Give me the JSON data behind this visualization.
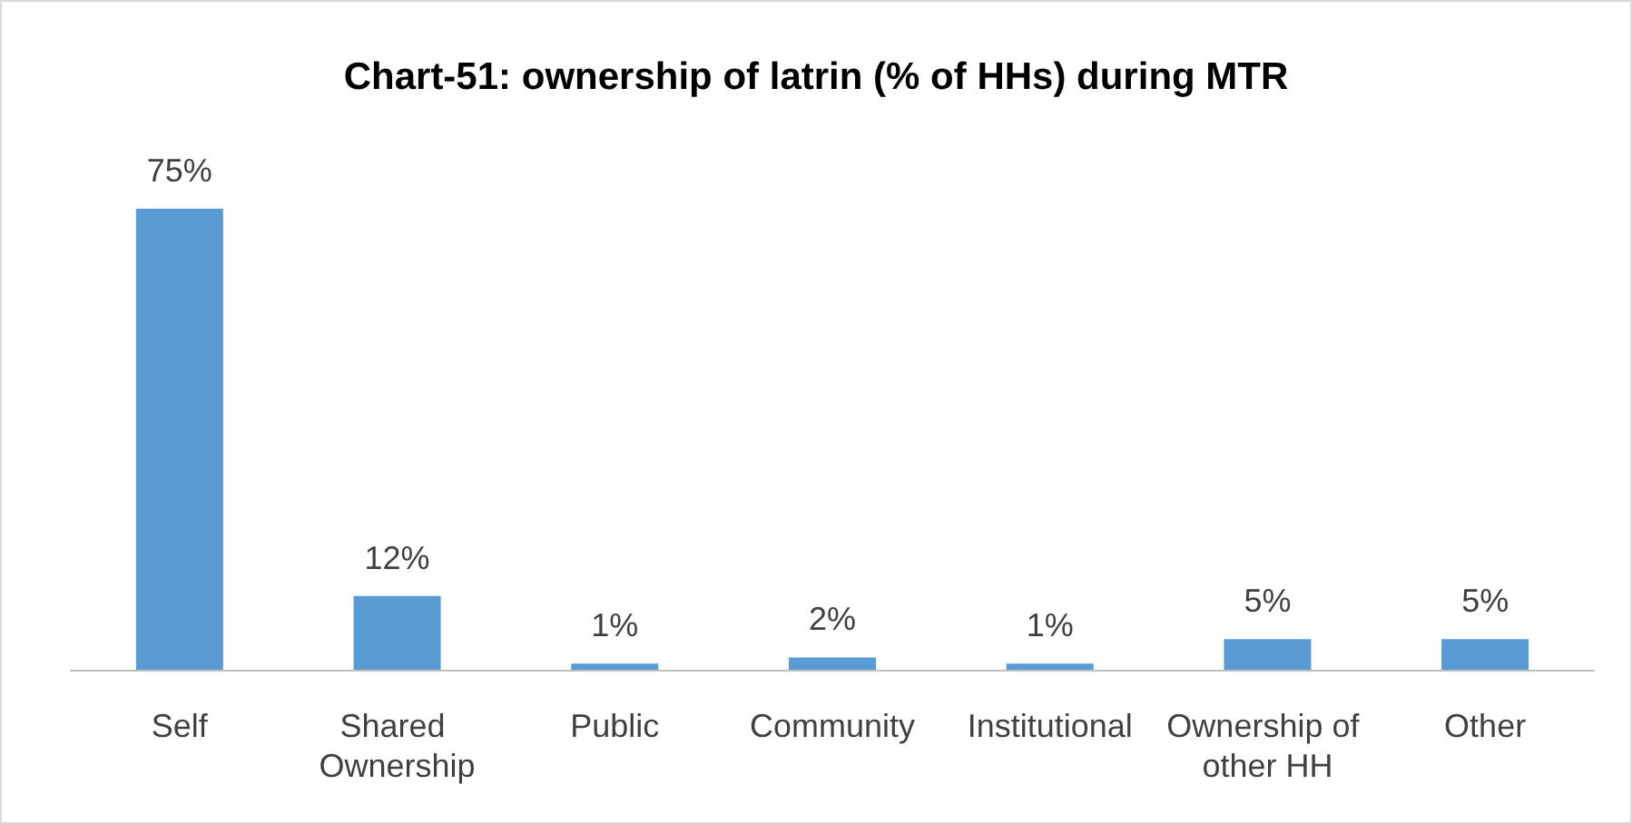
{
  "chart_data": {
    "type": "bar",
    "title": "Chart-51: ownership of latrin (% of HHs) during MTR",
    "categories": [
      "Self",
      "Shared Ownership",
      "Public",
      "Community",
      "Institutional",
      "Ownership of other HH",
      "Other"
    ],
    "values": [
      75,
      12,
      1,
      2,
      1,
      5,
      5
    ],
    "value_labels": [
      "75%",
      "12%",
      "1%",
      "2%",
      "1%",
      "5%",
      "5%"
    ],
    "color": "#5b9bd5"
  }
}
